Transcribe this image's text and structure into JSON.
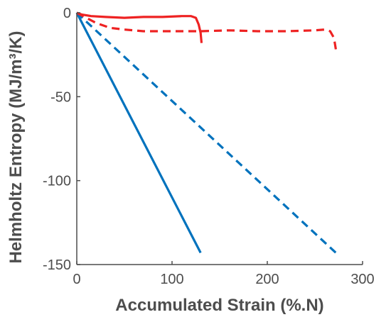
{
  "chart_data": {
    "type": "line",
    "title": "",
    "xlabel": "Accumulated Strain (%.N)",
    "ylabel": "Helmholtz Entropy (MJ/m³/K)",
    "xlim": [
      0,
      300
    ],
    "ylim": [
      -150,
      0
    ],
    "xticks": [
      0,
      100,
      200,
      300
    ],
    "yticks": [
      0,
      -50,
      -100,
      -150
    ],
    "grid": false,
    "legend": "none",
    "series": [
      {
        "color": "#0072bd",
        "style": "solid",
        "points": [
          [
            0,
            0
          ],
          [
            130,
            -143
          ]
        ]
      },
      {
        "color": "#0072bd",
        "style": "dashed",
        "points": [
          [
            0,
            0
          ],
          [
            272,
            -143
          ]
        ]
      },
      {
        "color": "#ee2222",
        "style": "solid",
        "points": [
          [
            0,
            0
          ],
          [
            5,
            -1
          ],
          [
            15,
            -2
          ],
          [
            30,
            -2.5
          ],
          [
            50,
            -3
          ],
          [
            70,
            -2.5
          ],
          [
            90,
            -2.5
          ],
          [
            110,
            -2
          ],
          [
            120,
            -2
          ],
          [
            125,
            -3
          ],
          [
            128,
            -7
          ],
          [
            130,
            -12
          ],
          [
            131,
            -18
          ]
        ]
      },
      {
        "color": "#ee2222",
        "style": "dashed",
        "points": [
          [
            0,
            0
          ],
          [
            10,
            -3
          ],
          [
            20,
            -6
          ],
          [
            35,
            -9
          ],
          [
            50,
            -10
          ],
          [
            70,
            -11
          ],
          [
            100,
            -11
          ],
          [
            130,
            -11
          ],
          [
            160,
            -10.5
          ],
          [
            190,
            -11
          ],
          [
            220,
            -11
          ],
          [
            250,
            -10.5
          ],
          [
            260,
            -10
          ],
          [
            266,
            -11
          ],
          [
            270,
            -15
          ],
          [
            272,
            -22
          ]
        ]
      }
    ]
  }
}
